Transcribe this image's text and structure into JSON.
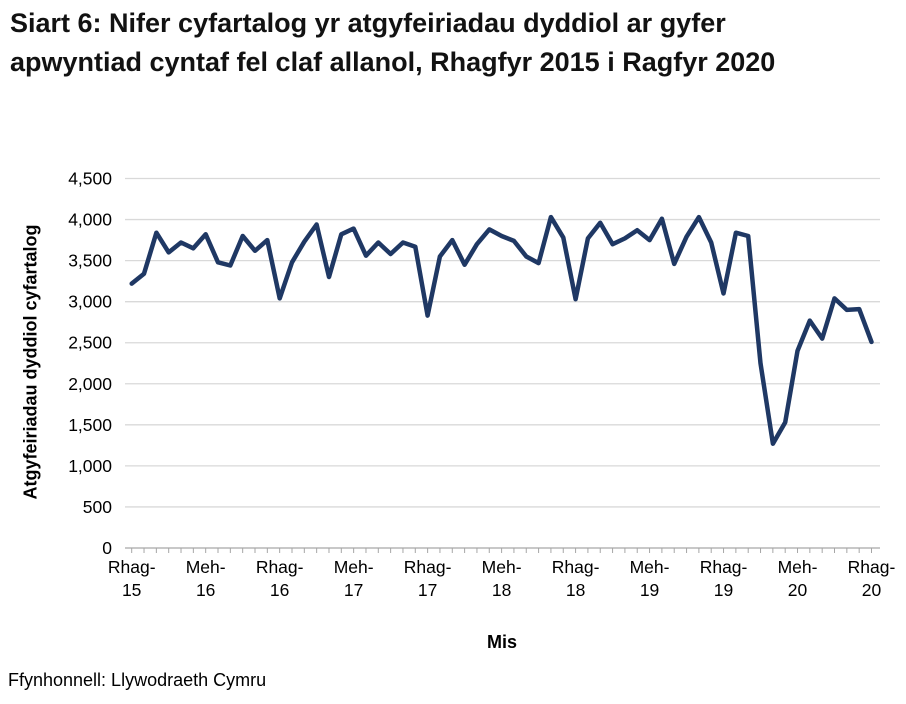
{
  "title": "Siart 6: Nifer cyfartalog yr atgyfeiriadau dyddiol ar gyfer apwyntiad cyntaf fel claf allanol, Rhagfyr 2015 i Ragfyr 2020",
  "source": "Ffynhonnell: Llywodraeth Cymru",
  "colors": {
    "line": "#1f3864",
    "grid": "#d9d9d9",
    "axis": "#a6a6a6",
    "text": "#000000"
  },
  "chart_data": {
    "type": "line",
    "title": "Siart 6: Nifer cyfartalog yr atgyfeiriadau dyddiol ar gyfer apwyntiad cyntaf fel claf allanol, Rhagfyr 2015 i Ragfyr 2020",
    "xlabel": "Mis",
    "ylabel": "Atgyfeiriadau dyddiol cyfartalog",
    "ylim": [
      0,
      4500
    ],
    "y_tick_step": 500,
    "grid": true,
    "legend": "none",
    "y_tick_labels": [
      "0",
      "500",
      "1,000",
      "1,500",
      "2,000",
      "2,500",
      "3,000",
      "3,500",
      "4,000",
      "4,500"
    ],
    "x_tick_labels": [
      "Rhag-15",
      "Meh-16",
      "Rhag-16",
      "Meh-17",
      "Rhag-17",
      "Meh-18",
      "Rhag-18",
      "Meh-19",
      "Rhag-19",
      "Meh-20",
      "Rhag-20"
    ],
    "x_tick_every": 6,
    "n_points": 61,
    "values": [
      3220,
      3340,
      3840,
      3600,
      3720,
      3650,
      3820,
      3480,
      3440,
      3800,
      3620,
      3750,
      3040,
      3480,
      3730,
      3940,
      3300,
      3820,
      3890,
      3560,
      3720,
      3580,
      3720,
      3670,
      2830,
      3550,
      3750,
      3450,
      3700,
      3880,
      3800,
      3740,
      3550,
      3470,
      4030,
      3780,
      3030,
      3770,
      3960,
      3700,
      3770,
      3870,
      3750,
      4010,
      3460,
      3790,
      4030,
      3720,
      3100,
      3840,
      3800,
      2250,
      1270,
      1530,
      2400,
      2770,
      2550,
      3040,
      2900,
      2910,
      2510
    ]
  }
}
